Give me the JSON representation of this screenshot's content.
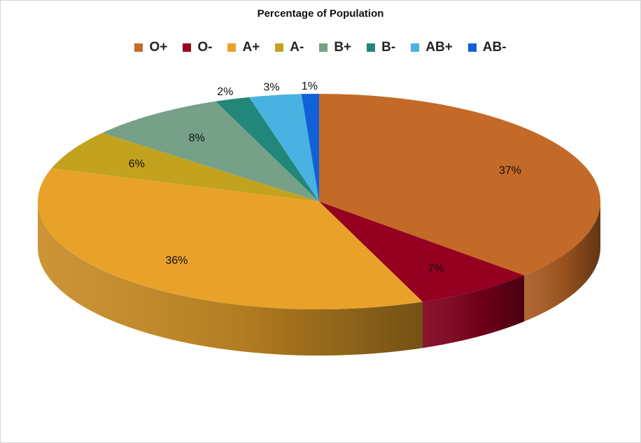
{
  "chart_data": {
    "type": "pie",
    "title": "Percentage of Population",
    "categories": [
      "O+",
      "O-",
      "A+",
      "A-",
      "B+",
      "B-",
      "AB+",
      "AB-"
    ],
    "values": [
      37,
      7,
      36,
      6,
      8,
      2,
      3,
      1
    ],
    "data_labels": [
      "37%",
      "7%",
      "36%",
      "6%",
      "8%",
      "2%",
      "3%",
      "1%"
    ],
    "colors": [
      "#C46A28",
      "#950020",
      "#E8A22A",
      "#C2A21E",
      "#76A088",
      "#22877A",
      "#4AB2E0",
      "#1060D8"
    ],
    "legend_position": "top",
    "style": "3d"
  }
}
